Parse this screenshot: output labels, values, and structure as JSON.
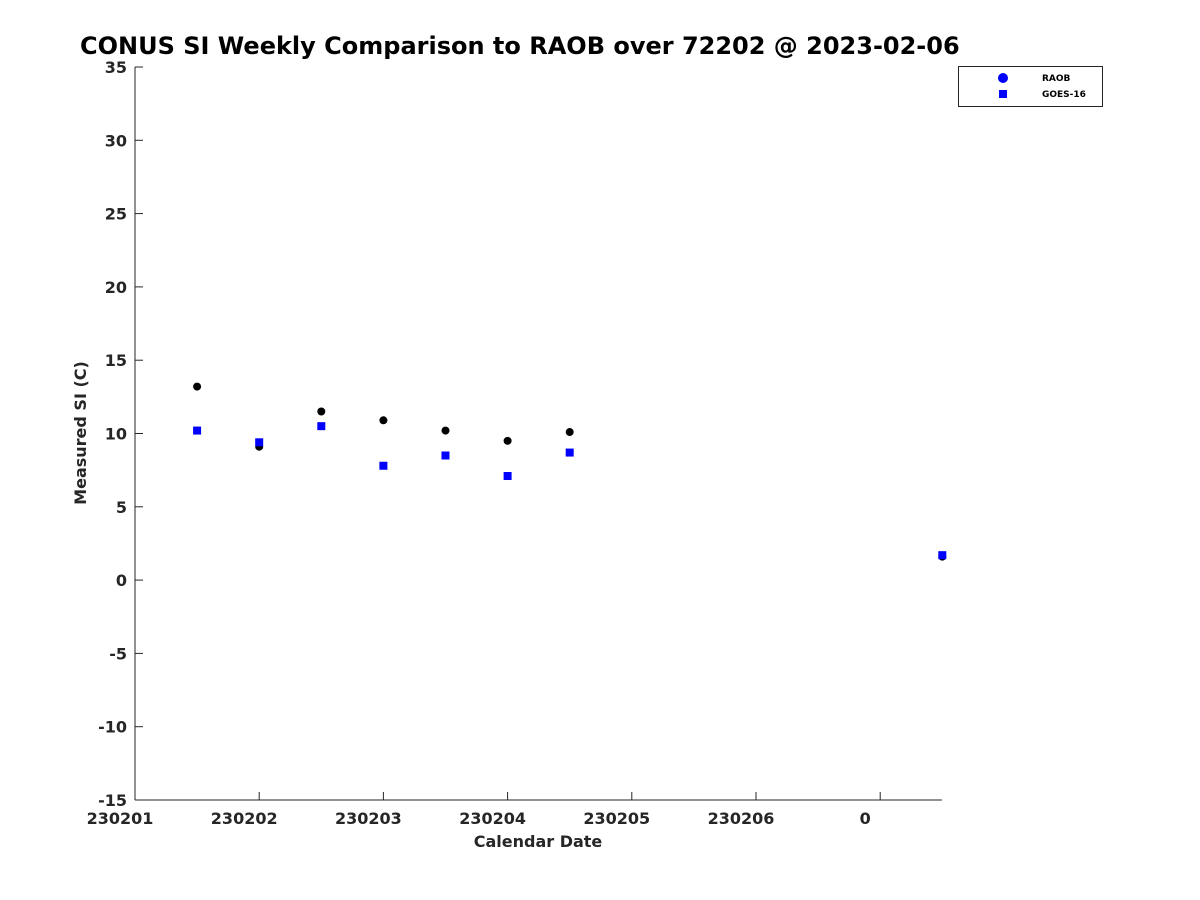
{
  "chart_data": {
    "type": "scatter",
    "title": "CONUS SI Weekly Comparison to RAOB over 72202 @ 2023-02-06",
    "xlabel": "Calendar Date",
    "ylabel": "Measured SI (C)",
    "xlim": [
      0,
      6.5
    ],
    "ylim": [
      -15,
      35
    ],
    "x_ticks": [
      0,
      1,
      2,
      3,
      4,
      5,
      6
    ],
    "x_tick_labels": [
      "230201",
      "230202",
      "230203",
      "230204",
      "230205",
      "230206",
      "0"
    ],
    "y_ticks": [
      -15,
      -10,
      -5,
      0,
      5,
      10,
      15,
      20,
      25,
      30,
      35
    ],
    "y_tick_labels": [
      "-15",
      "-10",
      "-5",
      "0",
      "5",
      "10",
      "15",
      "20",
      "25",
      "30",
      "35"
    ],
    "grid": false,
    "legend_position": "top-right",
    "series": [
      {
        "name": "RAOB",
        "marker": "circle",
        "color": "#000000",
        "legend_color": "#0000ff",
        "x": [
          0.5,
          1.0,
          1.5,
          2.0,
          2.5,
          3.0,
          3.5,
          6.5
        ],
        "values": [
          13.2,
          9.1,
          11.5,
          10.9,
          10.2,
          9.5,
          10.1,
          1.6
        ]
      },
      {
        "name": "GOES-16",
        "marker": "square",
        "color": "#0000ff",
        "legend_color": "#0000ff",
        "x": [
          0.5,
          1.0,
          1.5,
          2.0,
          2.5,
          3.0,
          3.5,
          6.5
        ],
        "values": [
          10.2,
          9.4,
          10.5,
          7.8,
          8.5,
          7.1,
          8.7,
          1.7
        ]
      }
    ]
  }
}
